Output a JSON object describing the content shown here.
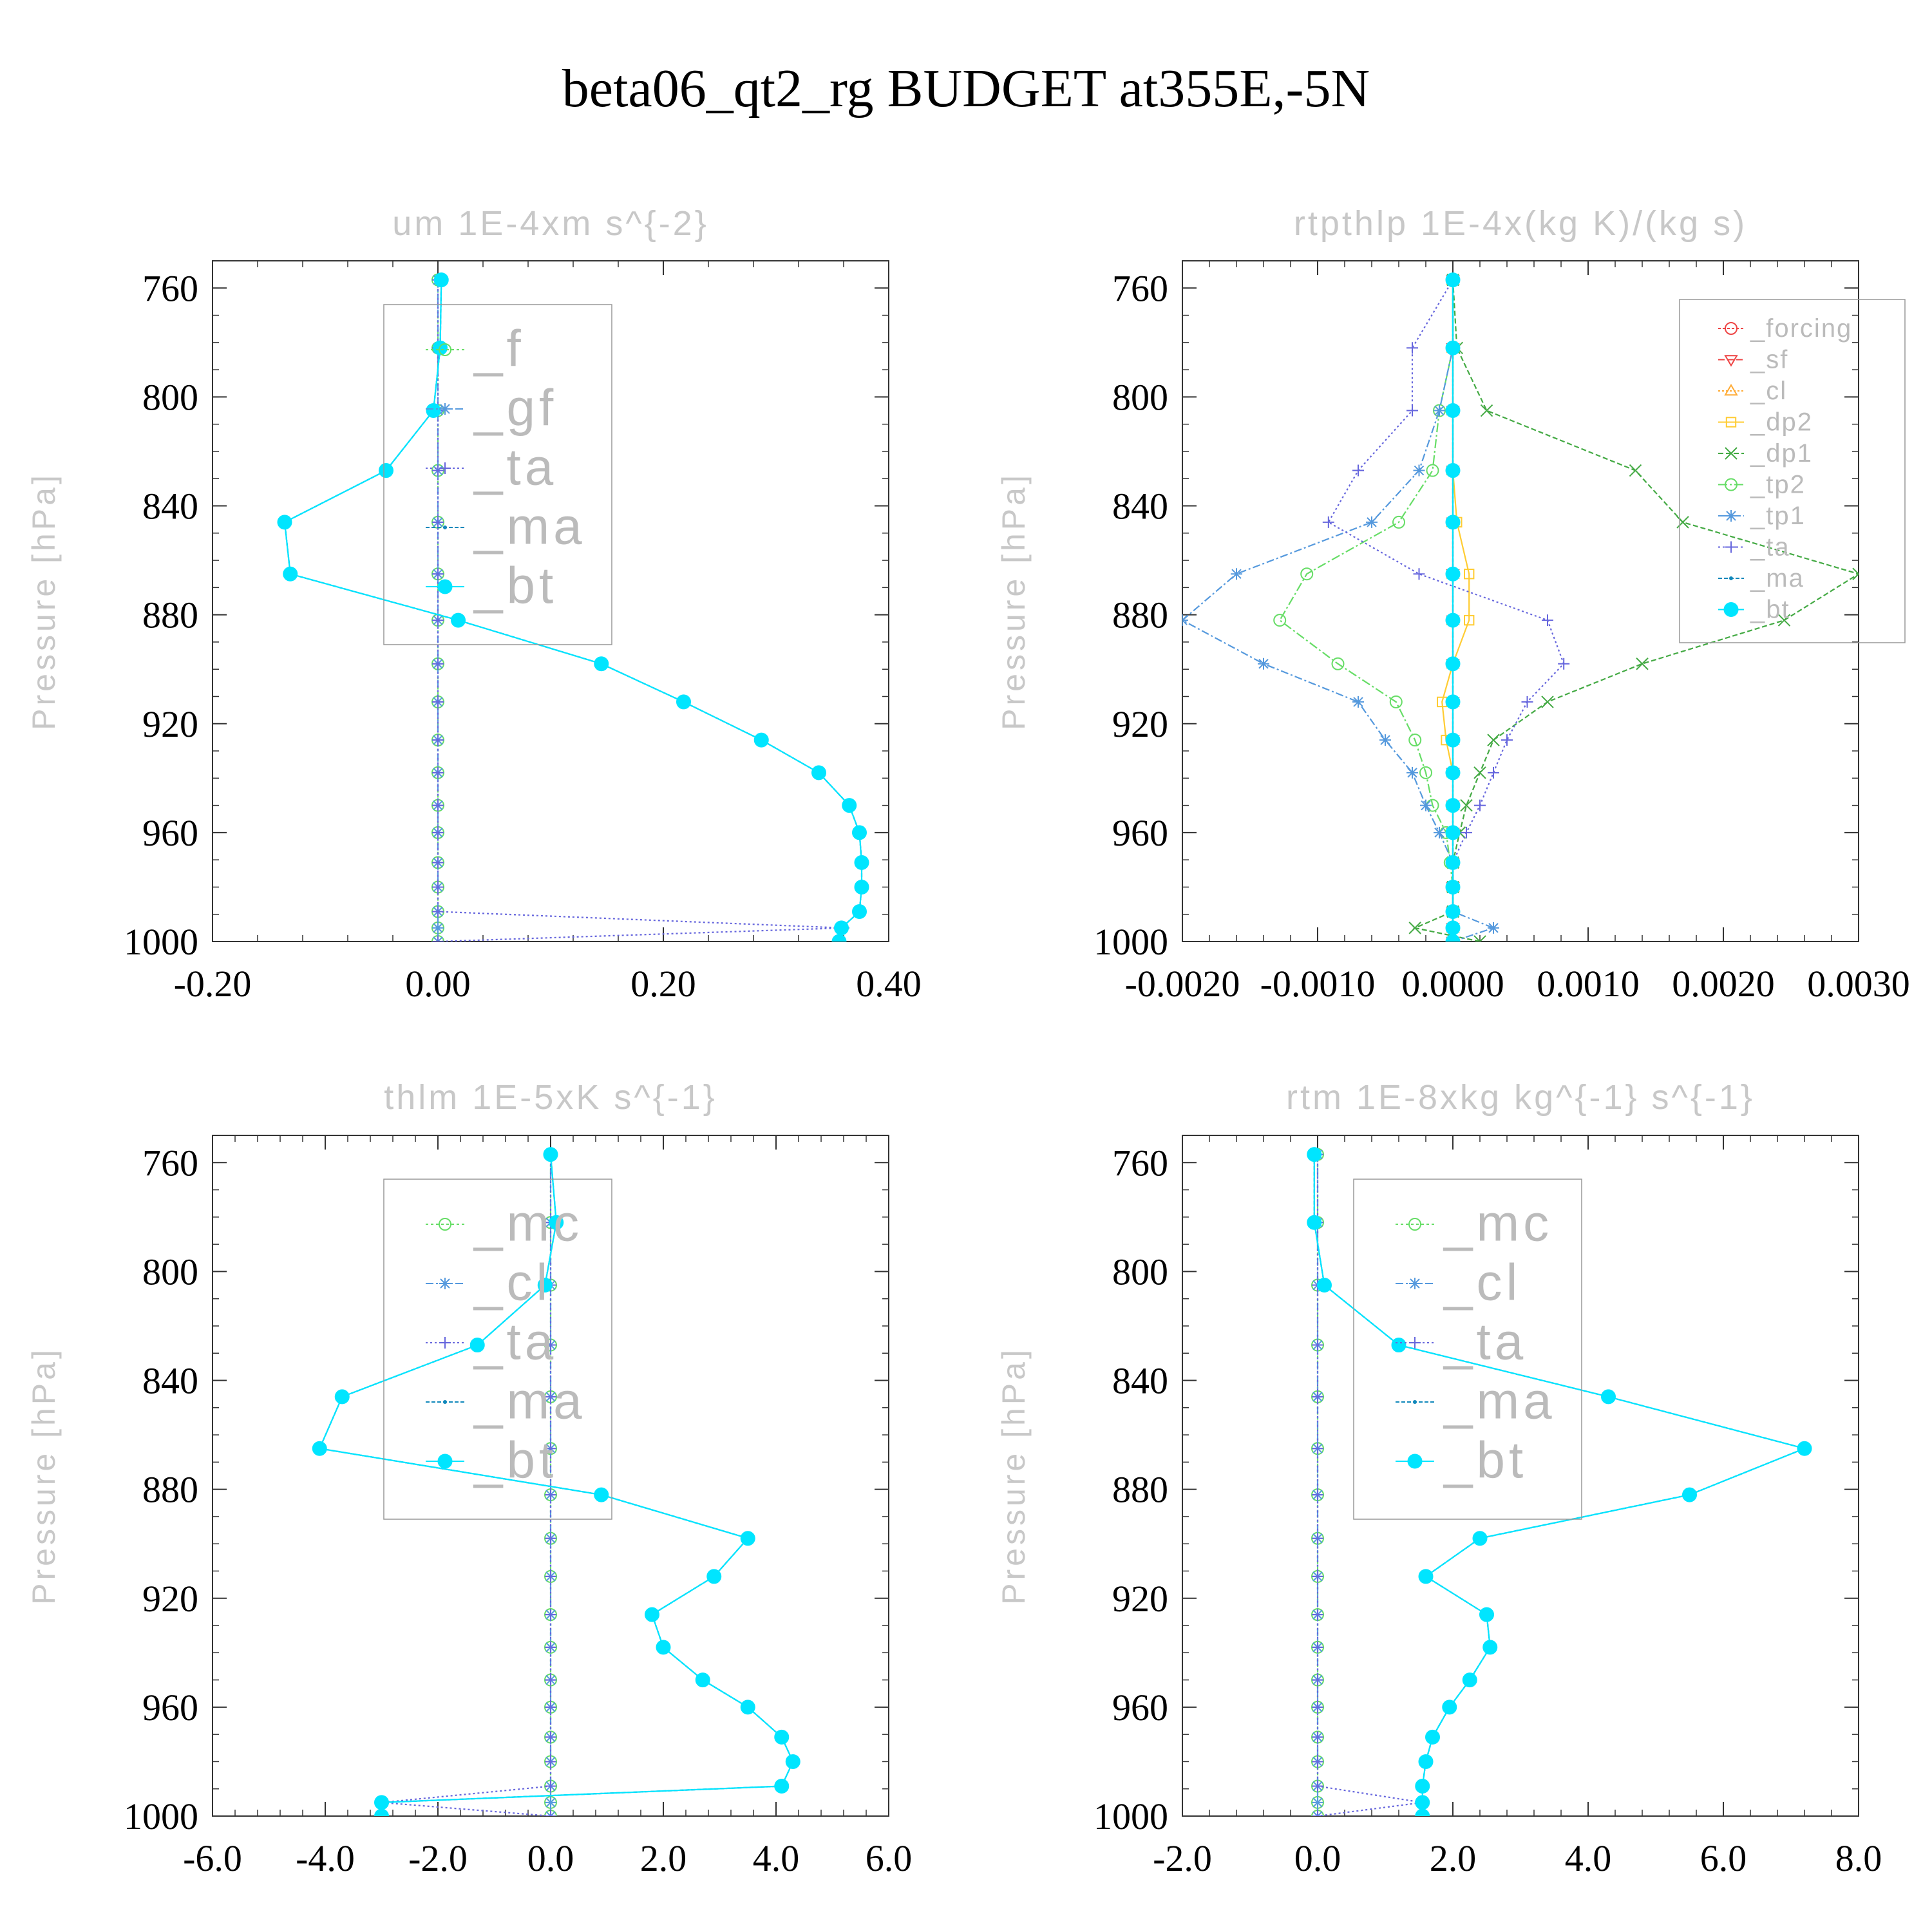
{
  "figure": {
    "title": "beta06_qt2_rg  BUDGET at355E,-5N"
  },
  "colors": {
    "background": "#ffffff",
    "axis": "#333333",
    "faint_text": "#c8c8c8",
    "legend_text": "#bbbbbb",
    "legend_box": "#999999"
  },
  "chart_data": [
    {
      "id": "um",
      "type": "line",
      "title": "um   1E-4xm s^{-2}",
      "xlabel": "",
      "ylabel": "Pressure [hPa]",
      "xlim": [
        -0.2,
        0.4
      ],
      "ylim": [
        1000,
        750
      ],
      "xticks": [
        "-0.20",
        "0.00",
        "0.20",
        "0.40"
      ],
      "yticks": [
        "760",
        "800",
        "840",
        "880",
        "920",
        "960",
        "1000"
      ],
      "ytick_values": [
        760,
        800,
        840,
        880,
        920,
        960,
        1000
      ],
      "xtick_values": [
        -0.2,
        0.0,
        0.2,
        0.4
      ],
      "legend": {
        "placement": "top-right",
        "font": "large"
      },
      "pressure": [
        757,
        782,
        805,
        827,
        846,
        865,
        882,
        898,
        912,
        926,
        938,
        950,
        960,
        971,
        980,
        989,
        995,
        1000
      ],
      "series": [
        {
          "name": "_f",
          "color": "#66dd66",
          "marker": "circle",
          "dash": "4,4",
          "values": [
            0,
            0,
            0,
            0,
            0,
            0,
            0,
            0,
            0,
            0,
            0,
            0,
            0,
            0,
            0,
            0,
            0,
            0
          ]
        },
        {
          "name": "_gf",
          "color": "#5599dd",
          "marker": "star",
          "dash": "12,4,3,4",
          "values": [
            0,
            0,
            0,
            0,
            0,
            0,
            0,
            0,
            0,
            0,
            0,
            0,
            0,
            0,
            0,
            0,
            0,
            0
          ]
        },
        {
          "name": "_ta",
          "color": "#6666dd",
          "marker": "plus",
          "dash": "3,4",
          "values": [
            0,
            0,
            0,
            0,
            0,
            0,
            0,
            0,
            0,
            0,
            0,
            0,
            0,
            0,
            0,
            0,
            0.36,
            0.0
          ]
        },
        {
          "name": "_ma",
          "color": "#1188bb",
          "marker": "dot",
          "dash": "6,3",
          "values": [
            0.003,
            0.002,
            -0.004,
            -0.046,
            -0.136,
            -0.131,
            0.018,
            0.145,
            0.218,
            0.287,
            0.338,
            0.365,
            0.374,
            0.376,
            0.376,
            0.374,
            0.358,
            0.356
          ]
        },
        {
          "name": "_bt",
          "color": "#00e5ff",
          "marker": "fillcircle",
          "dash": "",
          "values": [
            0.003,
            0.002,
            -0.004,
            -0.046,
            -0.136,
            -0.131,
            0.018,
            0.145,
            0.218,
            0.287,
            0.338,
            0.365,
            0.374,
            0.376,
            0.376,
            0.374,
            0.358,
            0.356
          ]
        }
      ]
    },
    {
      "id": "rtpthlp",
      "type": "line",
      "title": "rtpthlp   1E-4x(kg K)/(kg s)",
      "xlabel": "",
      "ylabel": "Pressure [hPa]",
      "xlim": [
        -0.002,
        0.003
      ],
      "ylim": [
        1000,
        750
      ],
      "xticks": [
        "-0.0020",
        "-0.0010",
        "0.0000",
        "0.0010",
        "0.0020",
        "0.0030"
      ],
      "xtick_values": [
        -0.002,
        -0.001,
        0.0,
        0.001,
        0.002,
        0.003
      ],
      "yticks": [
        "760",
        "800",
        "840",
        "880",
        "920",
        "960",
        "1000"
      ],
      "ytick_values": [
        760,
        800,
        840,
        880,
        920,
        960,
        1000
      ],
      "legend": {
        "placement": "top-right",
        "font": "small"
      },
      "pressure": [
        757,
        782,
        805,
        827,
        846,
        865,
        882,
        898,
        912,
        926,
        938,
        950,
        960,
        971,
        980,
        989,
        995,
        1000
      ],
      "series": [
        {
          "name": "_forcing",
          "color": "#ee4444",
          "marker": "circle",
          "dash": "4,3",
          "values": [
            0,
            0,
            0,
            0,
            0,
            0,
            0,
            0,
            0,
            0,
            0,
            0,
            0,
            0,
            0,
            0,
            0,
            0
          ]
        },
        {
          "name": "_sf",
          "color": "#ee4444",
          "marker": "triangle-down",
          "dash": "10,4",
          "values": [
            0,
            0,
            0,
            0,
            0,
            0,
            0,
            0,
            0,
            0,
            0,
            0,
            0,
            0,
            0,
            0,
            0,
            0
          ]
        },
        {
          "name": "_cl",
          "color": "#ffaa33",
          "marker": "triangle",
          "dash": "3,3",
          "values": [
            0,
            0,
            0,
            0,
            0,
            0,
            0,
            0,
            0,
            0,
            0,
            0,
            0,
            0,
            0,
            0,
            0,
            0
          ]
        },
        {
          "name": "_dp2",
          "color": "#ffcc33",
          "marker": "square",
          "dash": "",
          "values": [
            0,
            0,
            0,
            0,
            3e-05,
            0.00012,
            0.00012,
            0.0,
            -8e-05,
            -5e-05,
            0,
            0,
            0,
            0,
            0,
            0,
            0,
            0
          ]
        },
        {
          "name": "_dp1",
          "color": "#44aa44",
          "marker": "x",
          "dash": "8,4",
          "values": [
            0,
            3e-05,
            0.00025,
            0.00135,
            0.0017,
            0.003,
            0.00245,
            0.0014,
            0.0007,
            0.0003,
            0.0002,
            0.0001,
            5e-05,
            0.0,
            0.0,
            0.0,
            -0.00028,
            0.0002
          ]
        },
        {
          "name": "_tp2",
          "color": "#66dd66",
          "marker": "circle",
          "dash": "14,4,3,4",
          "values": [
            0,
            0,
            -0.0001,
            -0.00015,
            -0.0004,
            -0.00108,
            -0.00128,
            -0.00085,
            -0.00042,
            -0.00028,
            -0.0002,
            -0.00015,
            -5e-05,
            -2e-05,
            0,
            0,
            0,
            0
          ]
        },
        {
          "name": "_tp1",
          "color": "#5599dd",
          "marker": "star",
          "dash": "12,4,3,4",
          "values": [
            0,
            0,
            -0.0001,
            -0.00025,
            -0.0006,
            -0.0016,
            -0.002,
            -0.0014,
            -0.0007,
            -0.0005,
            -0.0003,
            -0.0002,
            -0.0001,
            0.0,
            0.0,
            0.0,
            0.0003,
            0.0
          ]
        },
        {
          "name": "_ta",
          "color": "#6666dd",
          "marker": "plus",
          "dash": "3,4",
          "values": [
            0,
            -0.0003,
            -0.0003,
            -0.0007,
            -0.00092,
            -0.00025,
            0.0007,
            0.00082,
            0.00055,
            0.0004,
            0.0003,
            0.0002,
            0.0001,
            0.0,
            0.0,
            0.0,
            0.0,
            0.0
          ]
        },
        {
          "name": "_ma",
          "color": "#1188bb",
          "marker": "dot",
          "dash": "6,3",
          "values": [
            0,
            0,
            0,
            0,
            0,
            0,
            0,
            0,
            0,
            0,
            0,
            0,
            0,
            0,
            0,
            0,
            0,
            0
          ]
        },
        {
          "name": "_bt",
          "color": "#00e5ff",
          "marker": "fillcircle",
          "dash": "",
          "values": [
            0,
            0,
            0,
            0,
            0,
            0,
            0,
            0,
            0,
            0,
            0,
            0,
            0,
            0,
            0,
            0,
            0,
            0
          ]
        }
      ]
    },
    {
      "id": "thlm",
      "type": "line",
      "title": "thlm   1E-5xK s^{-1}",
      "xlabel": "",
      "ylabel": "Pressure [hPa]",
      "xlim": [
        -6,
        6
      ],
      "ylim": [
        1000,
        750
      ],
      "xticks": [
        "-6.0",
        "-4.0",
        "-2.0",
        "0.0",
        "2.0",
        "4.0",
        "6.0"
      ],
      "xtick_values": [
        -6,
        -4,
        -2,
        0,
        2,
        4,
        6
      ],
      "yticks": [
        "760",
        "800",
        "840",
        "880",
        "920",
        "960",
        "1000"
      ],
      "ytick_values": [
        760,
        800,
        840,
        880,
        920,
        960,
        1000
      ],
      "legend": {
        "placement": "top-right",
        "font": "large"
      },
      "pressure": [
        757,
        782,
        805,
        827,
        846,
        865,
        882,
        898,
        912,
        926,
        938,
        950,
        960,
        971,
        980,
        989,
        995,
        1000
      ],
      "series": [
        {
          "name": "_mc",
          "color": "#66dd66",
          "marker": "circle",
          "dash": "4,4",
          "values": [
            0,
            0,
            0,
            0,
            0,
            0,
            0,
            0,
            0,
            0,
            0,
            0,
            0,
            0,
            0,
            0,
            0,
            0
          ]
        },
        {
          "name": "_cl",
          "color": "#5599dd",
          "marker": "star",
          "dash": "12,4,3,4",
          "values": [
            0,
            0,
            0,
            0,
            0,
            0,
            0,
            0,
            0,
            0,
            0,
            0,
            0,
            0,
            0,
            0,
            0,
            0
          ]
        },
        {
          "name": "_ta",
          "color": "#6666dd",
          "marker": "plus",
          "dash": "3,4",
          "values": [
            0,
            0,
            0,
            0,
            0,
            0,
            0,
            0,
            0,
            0,
            0,
            0,
            0,
            0,
            0,
            0,
            -3,
            0
          ]
        },
        {
          "name": "_ma",
          "color": "#1188bb",
          "marker": "dot",
          "dash": "6,3",
          "values": [
            0.0,
            0.1,
            -0.1,
            -1.3,
            -3.7,
            -4.1,
            0.9,
            3.5,
            2.9,
            1.8,
            2.0,
            2.7,
            3.5,
            4.1,
            4.3,
            4.1,
            -3.0,
            -3.0
          ]
        },
        {
          "name": "_bt",
          "color": "#00e5ff",
          "marker": "fillcircle",
          "dash": "",
          "values": [
            0.0,
            0.1,
            -0.1,
            -1.3,
            -3.7,
            -4.1,
            0.9,
            3.5,
            2.9,
            1.8,
            2.0,
            2.7,
            3.5,
            4.1,
            4.3,
            4.1,
            -3.0,
            -3.0
          ]
        }
      ]
    },
    {
      "id": "rtm",
      "type": "line",
      "title": "rtm   1E-8xkg kg^{-1} s^{-1}",
      "xlabel": "",
      "ylabel": "Pressure [hPa]",
      "xlim": [
        -2,
        8
      ],
      "ylim": [
        1000,
        750
      ],
      "xticks": [
        "-2.0",
        "0.0",
        "2.0",
        "4.0",
        "6.0",
        "8.0"
      ],
      "xtick_values": [
        -2,
        0,
        2,
        4,
        6,
        8
      ],
      "yticks": [
        "760",
        "800",
        "840",
        "880",
        "920",
        "960",
        "1000"
      ],
      "ytick_values": [
        760,
        800,
        840,
        880,
        920,
        960,
        1000
      ],
      "legend": {
        "placement": "top-right",
        "font": "large"
      },
      "pressure": [
        757,
        782,
        805,
        827,
        846,
        865,
        882,
        898,
        912,
        926,
        938,
        950,
        960,
        971,
        980,
        989,
        995,
        1000
      ],
      "series": [
        {
          "name": "_mc",
          "color": "#66dd66",
          "marker": "circle",
          "dash": "4,4",
          "values": [
            0,
            0,
            0,
            0,
            0,
            0,
            0,
            0,
            0,
            0,
            0,
            0,
            0,
            0,
            0,
            0,
            0,
            0
          ]
        },
        {
          "name": "_cl",
          "color": "#5599dd",
          "marker": "star",
          "dash": "12,4,3,4",
          "values": [
            0,
            0,
            0,
            0,
            0,
            0,
            0,
            0,
            0,
            0,
            0,
            0,
            0,
            0,
            0,
            0,
            0,
            0
          ]
        },
        {
          "name": "_ta",
          "color": "#6666dd",
          "marker": "plus",
          "dash": "3,4",
          "values": [
            0,
            0,
            0,
            0,
            0,
            0,
            0,
            0,
            0,
            0,
            0,
            0,
            0,
            0,
            0,
            0,
            1.55,
            0
          ]
        },
        {
          "name": "_ma",
          "color": "#1188bb",
          "marker": "dot",
          "dash": "6,3",
          "values": [
            -0.05,
            -0.05,
            0.1,
            1.2,
            4.3,
            7.2,
            5.5,
            2.4,
            1.6,
            2.5,
            2.55,
            2.25,
            1.95,
            1.7,
            1.6,
            1.55,
            1.55,
            1.55
          ]
        },
        {
          "name": "_bt",
          "color": "#00e5ff",
          "marker": "fillcircle",
          "dash": "",
          "values": [
            -0.05,
            -0.05,
            0.1,
            1.2,
            4.3,
            7.2,
            5.5,
            2.4,
            1.6,
            2.5,
            2.55,
            2.25,
            1.95,
            1.7,
            1.6,
            1.55,
            1.55,
            1.55
          ]
        }
      ]
    }
  ]
}
